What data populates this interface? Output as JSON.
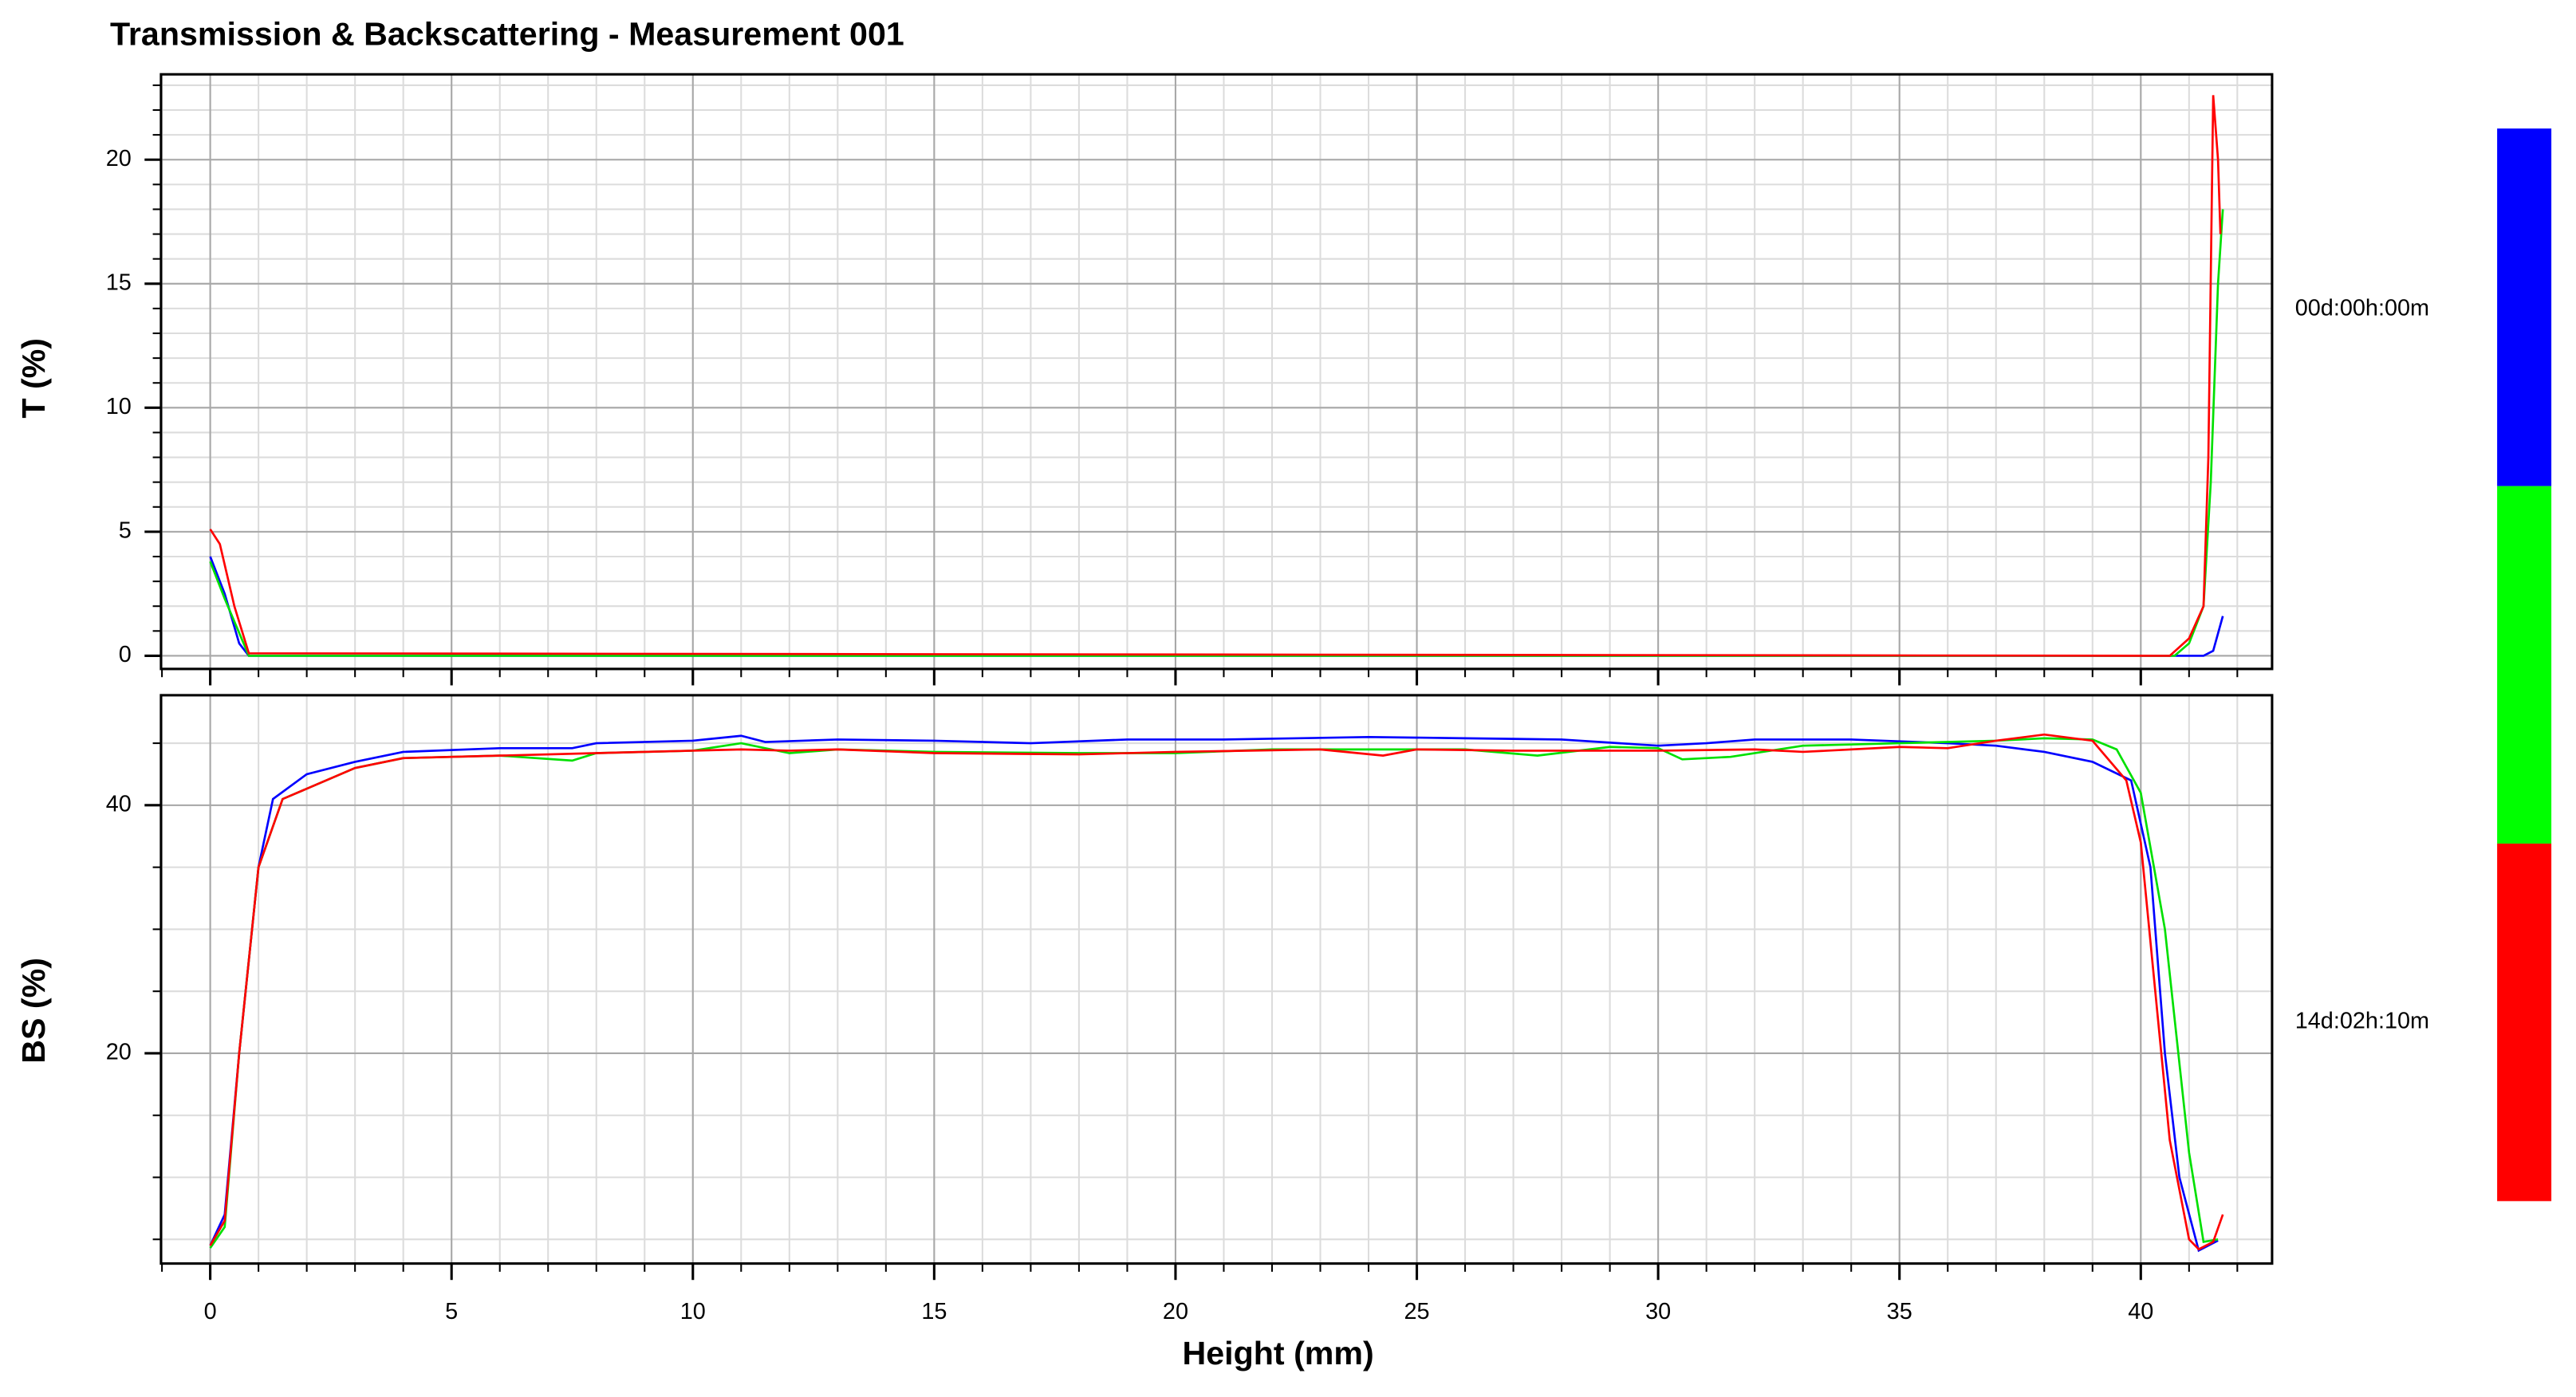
{
  "chart_data": [
    {
      "type": "line",
      "title": "Transmission & Backscattering - Measurement 001",
      "ylabel": "T (%)",
      "xlim": [
        -1.02,
        42.72
      ],
      "xticks": [
        0,
        5,
        10,
        15,
        20,
        25,
        30,
        35,
        40
      ],
      "x_minor_step": 1,
      "xtick_labels": false,
      "ylim": [
        -0.53,
        23.44
      ],
      "yticks": [
        0,
        5,
        10,
        15,
        20
      ],
      "y_minor_step": 1,
      "grid": true,
      "series": [
        {
          "color": "#0000ff",
          "x": [
            0,
            0.3,
            0.6,
            0.8,
            41.3,
            41.5,
            41.7
          ],
          "values": [
            4,
            2.5,
            0.5,
            0,
            0,
            0.2,
            1.6
          ]
        },
        {
          "color": "#00e000",
          "x": [
            0,
            0.3,
            0.8,
            40.7,
            41,
            41.3,
            41.45,
            41.6,
            41.7
          ],
          "values": [
            3.8,
            2.3,
            0,
            0,
            0.5,
            2,
            7,
            15,
            18
          ]
        },
        {
          "color": "#ff0000",
          "x": [
            0,
            0.2,
            0.5,
            0.8,
            40.6,
            41,
            41.3,
            41.4,
            41.5,
            41.6,
            41.65
          ],
          "values": [
            5.1,
            4.5,
            2,
            0.1,
            0,
            0.7,
            2,
            8,
            22.6,
            20,
            17
          ]
        }
      ]
    },
    {
      "type": "line",
      "ylabel": "BS (%)",
      "xlabel": "Height (mm)",
      "xlim": [
        -1.02,
        42.72
      ],
      "xticks": [
        0,
        5,
        10,
        15,
        20,
        25,
        30,
        35,
        40
      ],
      "x_minor_step": 1,
      "xtick_labels": true,
      "ylim": [
        3.05,
        48.87
      ],
      "yticks": [
        20,
        40
      ],
      "y_minor_step": 5,
      "grid": true,
      "series": [
        {
          "color": "#0000ff",
          "x": [
            0,
            0.3,
            0.6,
            1,
            1.3,
            2,
            3,
            4,
            6,
            7.5,
            8,
            10,
            11,
            11.5,
            13,
            15,
            17,
            19,
            21,
            24,
            26,
            28,
            30,
            31,
            32,
            34,
            36,
            37,
            38,
            39,
            39.8,
            40.2,
            40.5,
            40.8,
            41.2,
            41.6
          ],
          "values": [
            4.5,
            7,
            20,
            35,
            40.5,
            42.5,
            43.5,
            44.3,
            44.6,
            44.6,
            45,
            45.2,
            45.6,
            45.1,
            45.3,
            45.2,
            45,
            45.3,
            45.3,
            45.5,
            45.4,
            45.3,
            44.8,
            45,
            45.3,
            45.3,
            45,
            44.8,
            44.3,
            43.5,
            42,
            35,
            20,
            10,
            4.1,
            4.9
          ]
        },
        {
          "color": "#00e000",
          "x": [
            0,
            0.3,
            0.6,
            1,
            1.5,
            3,
            4,
            6,
            7.5,
            8,
            10,
            11,
            12,
            13,
            15,
            18,
            20,
            22,
            24,
            26,
            27.5,
            29,
            30,
            30.5,
            31.5,
            33,
            35,
            37,
            38,
            39,
            39.5,
            40,
            40.5,
            41,
            41.3,
            41.6
          ],
          "values": [
            4.3,
            6,
            20,
            35,
            40.5,
            43,
            43.8,
            44,
            43.6,
            44.2,
            44.4,
            45,
            44.2,
            44.5,
            44.3,
            44.2,
            44.2,
            44.5,
            44.5,
            44.5,
            44,
            44.7,
            44.6,
            43.7,
            43.9,
            44.8,
            45,
            45.2,
            45.4,
            45.3,
            44.5,
            41,
            30,
            12,
            4.8,
            5
          ]
        },
        {
          "color": "#ff0000",
          "x": [
            0,
            0.3,
            0.6,
            1,
            1.5,
            3,
            4,
            6,
            8,
            10,
            11,
            12,
            13,
            15,
            18,
            20,
            23,
            24.3,
            25,
            27,
            28,
            30,
            32,
            33,
            35,
            36,
            37,
            38,
            39,
            39.7,
            40,
            40.3,
            40.6,
            41,
            41.2,
            41.5,
            41.7
          ],
          "values": [
            4.5,
            6.5,
            20,
            35,
            40.5,
            43,
            43.8,
            44,
            44.2,
            44.4,
            44.5,
            44.4,
            44.5,
            44.2,
            44.1,
            44.3,
            44.5,
            44,
            44.5,
            44.4,
            44.4,
            44.4,
            44.5,
            44.3,
            44.7,
            44.6,
            45.2,
            45.7,
            45.2,
            42,
            37,
            25,
            13,
            5,
            4.2,
            4.8,
            7
          ]
        }
      ]
    }
  ],
  "colorbar": {
    "colors": [
      "#0000ff",
      "#00ff00",
      "#ff0000"
    ],
    "labels": [
      "00d:00h:00m",
      "14d:02h:10m"
    ]
  }
}
